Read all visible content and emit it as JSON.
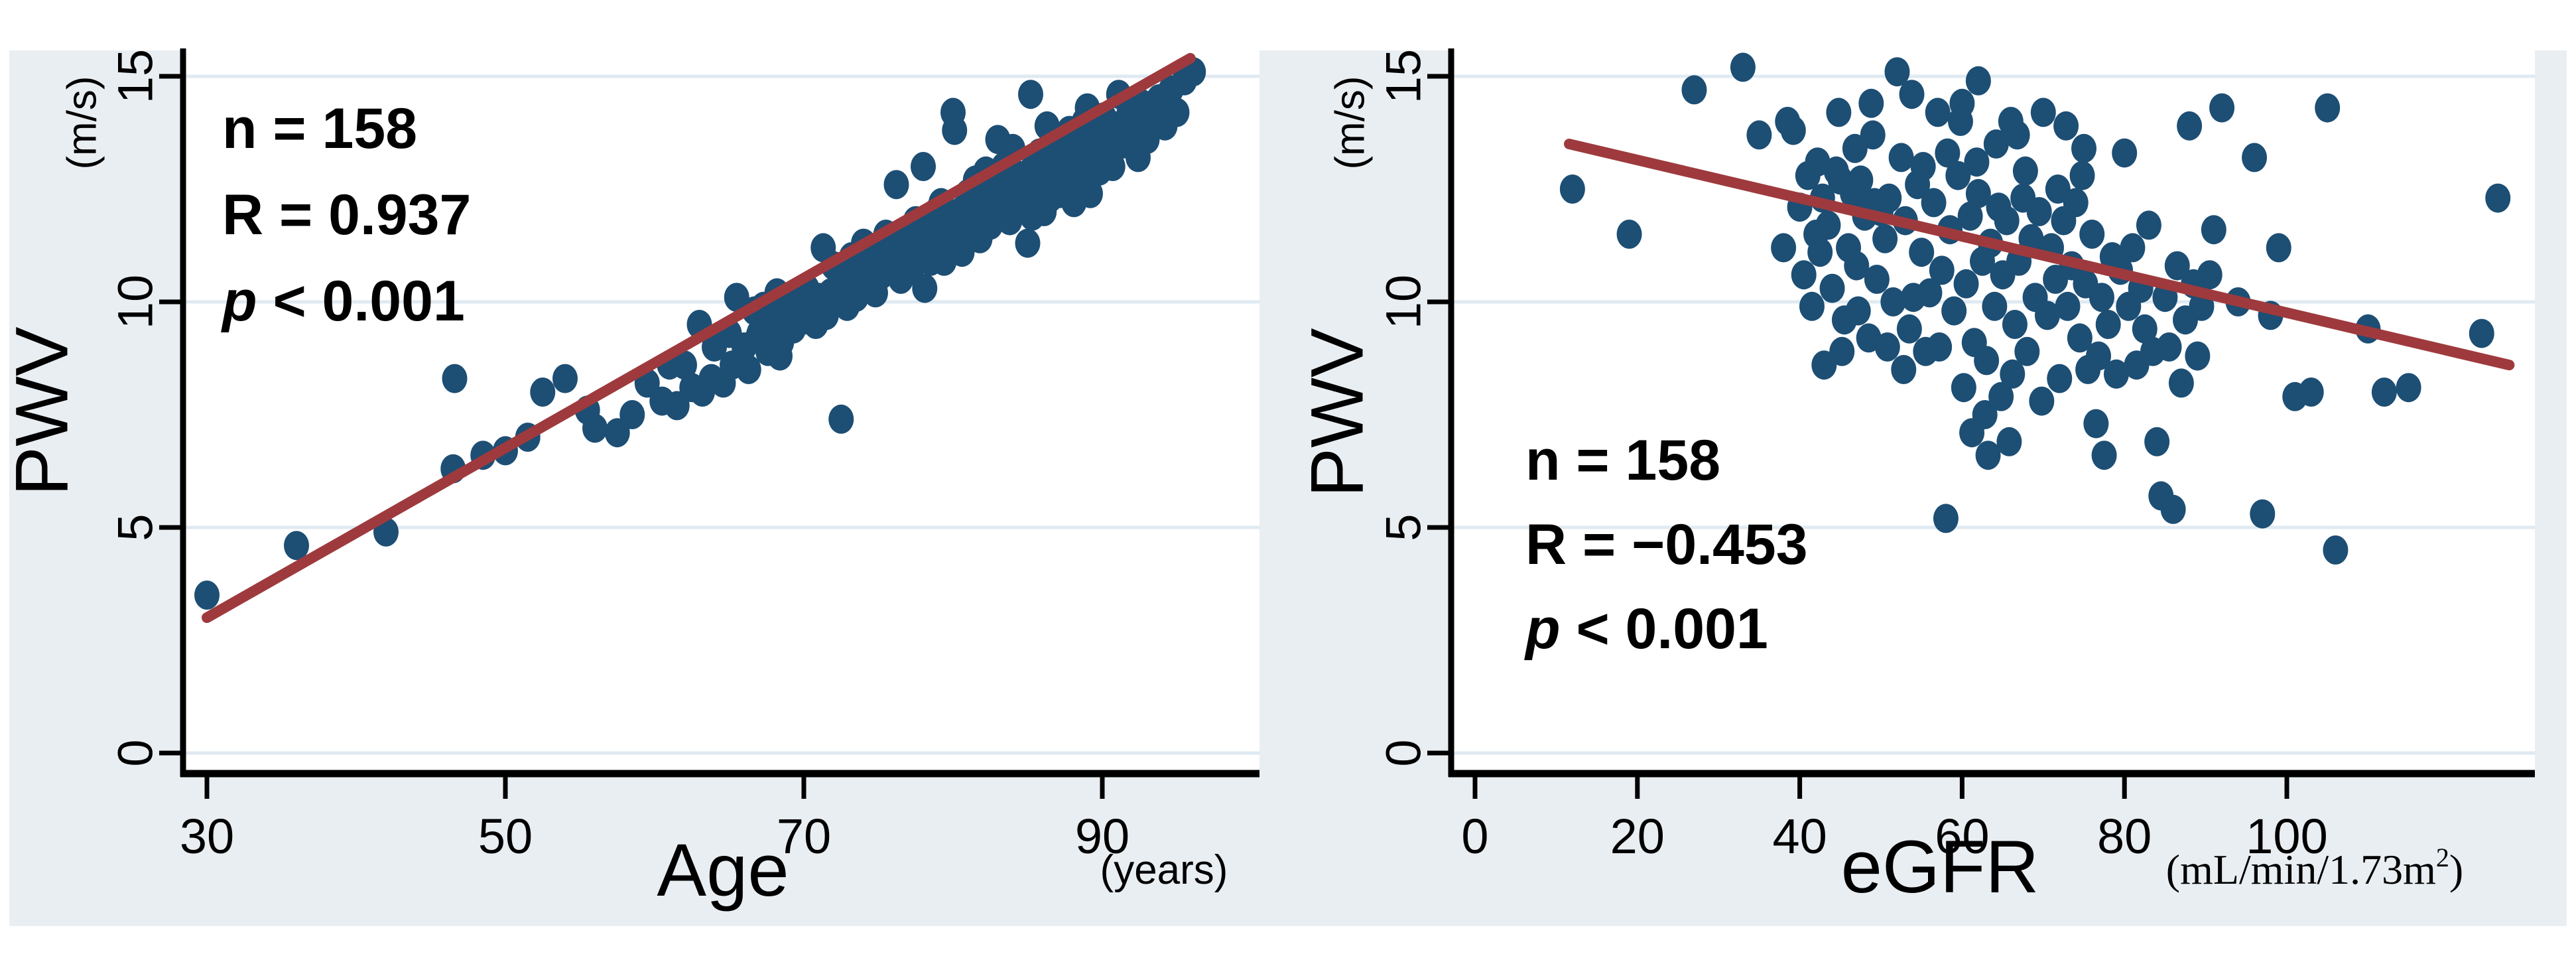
{
  "figure": {
    "background_color": "#e9eef2",
    "plot_background": "#ffffff",
    "gridline_color": "#dfeaf1",
    "dot_color": "#1d4e74",
    "line_color": "#9e3a3d",
    "axis_color": "#000000"
  },
  "chart_data": [
    {
      "type": "scatter",
      "title": "",
      "xlabel": "Age",
      "xunit": "(years)",
      "ylabel": "PWV",
      "yunit": "(m/s)",
      "xlim": [
        28.4,
        100.5
      ],
      "ylim": [
        -0.5,
        15.6
      ],
      "xticks": [
        30,
        50,
        70,
        90
      ],
      "yticks": [
        0,
        5,
        10,
        15
      ],
      "grid": "horizontal",
      "legend": "none",
      "annotations": [
        "n = 158",
        "R = 0.937",
        "p < 0.001"
      ],
      "n": 158,
      "R": 0.937,
      "p": "< 0.001",
      "regression_line": {
        "x1": 30,
        "y1": 3.0,
        "x2": 95.9,
        "y2": 15.4
      },
      "points": [
        [
          30,
          3.5
        ],
        [
          36,
          4.6
        ],
        [
          42,
          4.9
        ],
        [
          46.5,
          6.3
        ],
        [
          48.5,
          6.6
        ],
        [
          50,
          6.7
        ],
        [
          51.5,
          7
        ],
        [
          52.5,
          8
        ],
        [
          54,
          8.3
        ],
        [
          55.5,
          7.6
        ],
        [
          56,
          7.2
        ],
        [
          57.5,
          7.1
        ],
        [
          58.5,
          7.5
        ],
        [
          60.5,
          7.8
        ],
        [
          61,
          8.6
        ],
        [
          61.5,
          7.7
        ],
        [
          62,
          8.6
        ],
        [
          62.5,
          8.1
        ],
        [
          63,
          9.5
        ],
        [
          63.2,
          8
        ],
        [
          63.8,
          8.3
        ],
        [
          64,
          9
        ],
        [
          64.6,
          8.2
        ],
        [
          65,
          9.3
        ],
        [
          65.2,
          8.6
        ],
        [
          65.5,
          10.1
        ],
        [
          66,
          9
        ],
        [
          66.3,
          8.5
        ],
        [
          66.7,
          9.8
        ],
        [
          66.9,
          9.2
        ],
        [
          67,
          9.3
        ],
        [
          67.3,
          9.9
        ],
        [
          67.6,
          8.9
        ],
        [
          68,
          9.5
        ],
        [
          68.2,
          10.2
        ],
        [
          68.5,
          9.1
        ],
        [
          68.8,
          9.7
        ],
        [
          69,
          10
        ],
        [
          69.3,
          9.4
        ],
        [
          69.6,
          9.8
        ],
        [
          70,
          9.6
        ],
        [
          70.2,
          10.3
        ],
        [
          70.5,
          9.9
        ],
        [
          70.8,
          9.5
        ],
        [
          71,
          10.1
        ],
        [
          71.3,
          11.2
        ],
        [
          71.5,
          9.7
        ],
        [
          71.8,
          10.2
        ],
        [
          72,
          10.8
        ],
        [
          72.2,
          10
        ],
        [
          72.5,
          7.4
        ],
        [
          72.7,
          10.4
        ],
        [
          72.9,
          9.9
        ],
        [
          73,
          10.5
        ],
        [
          73.2,
          11
        ],
        [
          73.5,
          10.1
        ],
        [
          73.8,
          10.7
        ],
        [
          74,
          11.3
        ],
        [
          74.2,
          10.4
        ],
        [
          74.5,
          10.9
        ],
        [
          74.8,
          10.2
        ],
        [
          75,
          11.1
        ],
        [
          75.2,
          10.6
        ],
        [
          75.5,
          11.5
        ],
        [
          75.8,
          10.8
        ],
        [
          76,
          11.2
        ],
        [
          76.2,
          12.6
        ],
        [
          76.5,
          10.5
        ],
        [
          76.8,
          11
        ],
        [
          77,
          11.4
        ],
        [
          77.2,
          10.7
        ],
        [
          77.5,
          11.8
        ],
        [
          77.8,
          11.1
        ],
        [
          78,
          13
        ],
        [
          78.1,
          10.3
        ],
        [
          78.3,
          11.6
        ],
        [
          78.5,
          10.9
        ],
        [
          78.7,
          11.3
        ],
        [
          78.9,
          12
        ],
        [
          79,
          11.5
        ],
        [
          79.2,
          12.2
        ],
        [
          79.5,
          11
        ],
        [
          79.8,
          11.8
        ],
        [
          80,
          14.2
        ],
        [
          80.1,
          13.8
        ],
        [
          80.3,
          11.3
        ],
        [
          80.5,
          12
        ],
        [
          80.8,
          11.6
        ],
        [
          81,
          12.4
        ],
        [
          81.2,
          11.9
        ],
        [
          81.5,
          12.7
        ],
        [
          81.8,
          11.4
        ],
        [
          82,
          12.1
        ],
        [
          82.2,
          12.9
        ],
        [
          82.5,
          11.7
        ],
        [
          82.8,
          12.3
        ],
        [
          83,
          13.6
        ],
        [
          83.2,
          12
        ],
        [
          83.5,
          12.6
        ],
        [
          83.8,
          11.8
        ],
        [
          84,
          13.4
        ],
        [
          84.2,
          12.2
        ],
        [
          84.5,
          12.8
        ],
        [
          84.8,
          12.4
        ],
        [
          83.4,
          13
        ],
        [
          82.4,
          12.6
        ],
        [
          81.4,
          12.2
        ],
        [
          80.6,
          11.1
        ],
        [
          79.4,
          10.9
        ],
        [
          85,
          11.3
        ],
        [
          85.2,
          14.6
        ],
        [
          85.4,
          13
        ],
        [
          85.6,
          12.5
        ],
        [
          85.8,
          13.3
        ],
        [
          86,
          12.8
        ],
        [
          86.3,
          13.9
        ],
        [
          86.5,
          12.3
        ],
        [
          86.8,
          13.5
        ],
        [
          87,
          12.9
        ],
        [
          87.3,
          13.2
        ],
        [
          87.5,
          12.6
        ],
        [
          87.8,
          13.8
        ],
        [
          88,
          13.1
        ],
        [
          88.3,
          12.7
        ],
        [
          88.5,
          13.4
        ],
        [
          88.8,
          14
        ],
        [
          89,
          14.3
        ],
        [
          89.3,
          13
        ],
        [
          89.5,
          13.6
        ],
        [
          89.8,
          12.9
        ],
        [
          90,
          13.3
        ],
        [
          90.1,
          14.1
        ],
        [
          90.4,
          13.7
        ],
        [
          90.7,
          13
        ],
        [
          89.2,
          12.4
        ],
        [
          88.1,
          12.2
        ],
        [
          86.1,
          12
        ],
        [
          85.3,
          11.9
        ],
        [
          87.1,
          12.4
        ],
        [
          90.9,
          13.9
        ],
        [
          91.1,
          14.6
        ],
        [
          91.4,
          13.5
        ],
        [
          91.8,
          14.2
        ],
        [
          92.2,
          13.8
        ],
        [
          92.6,
          14.4
        ],
        [
          93,
          13.6
        ],
        [
          93.4,
          14
        ],
        [
          93.8,
          14.5
        ],
        [
          94.2,
          13.9
        ],
        [
          94.6,
          14.7
        ],
        [
          95,
          14.2
        ],
        [
          95.5,
          14.9
        ],
        [
          96.1,
          15.1
        ],
        [
          92.4,
          13.2
        ],
        [
          94,
          14.3
        ],
        [
          59.5,
          8.2
        ],
        [
          68.4,
          8.8
        ],
        [
          46.6,
          8.3
        ]
      ]
    },
    {
      "type": "scatter",
      "title": "",
      "xlabel": "eGFR",
      "xunit_pre": "(mL/min/1.73m",
      "xunit_sup": "2",
      "xunit_post": ")",
      "ylabel": "PWV",
      "yunit": "(m/s)",
      "xlim": [
        -3,
        130.5
      ],
      "ylim": [
        -0.5,
        15.6
      ],
      "xticks": [
        0,
        20,
        40,
        60,
        80,
        100
      ],
      "yticks": [
        0,
        5,
        10,
        15
      ],
      "grid": "horizontal",
      "legend": "none",
      "annotations": [
        "n = 158",
        "R = −0.453",
        "p < 0.001"
      ],
      "n": 158,
      "R": -0.453,
      "p": "< 0.001",
      "regression_line": {
        "x1": 11.6,
        "y1": 13.5,
        "x2": 127.4,
        "y2": 8.6
      },
      "points": [
        [
          12,
          12.5
        ],
        [
          19,
          11.5
        ],
        [
          27,
          14.7
        ],
        [
          33,
          15.2
        ],
        [
          35,
          13.7
        ],
        [
          38.5,
          14
        ],
        [
          39.2,
          13.8
        ],
        [
          38,
          11.2
        ],
        [
          42,
          11.5
        ],
        [
          42.5,
          11.1
        ],
        [
          43,
          8.6
        ],
        [
          45,
          12.7
        ],
        [
          47.5,
          12.7
        ],
        [
          49,
          13.7
        ],
        [
          52,
          15.1
        ],
        [
          52.5,
          13.2
        ],
        [
          51,
          12.3
        ],
        [
          54,
          10.1
        ],
        [
          56,
          10.2
        ],
        [
          58,
          5.2
        ],
        [
          86,
          5.4
        ],
        [
          97,
          5.3
        ],
        [
          106,
          4.5
        ],
        [
          84,
          6.9
        ],
        [
          84.5,
          5.7
        ],
        [
          75.5,
          8.5
        ],
        [
          76.5,
          7.3
        ],
        [
          77.5,
          6.6
        ],
        [
          57,
          14.2
        ],
        [
          60,
          14.4
        ],
        [
          62,
          14.9
        ],
        [
          66,
          14
        ],
        [
          70,
          14.2
        ],
        [
          75,
          13.4
        ],
        [
          80,
          13.3
        ],
        [
          88,
          13.9
        ],
        [
          92,
          14.3
        ],
        [
          105,
          14.3
        ],
        [
          91,
          11.6
        ],
        [
          94,
          10
        ],
        [
          99,
          11.2
        ],
        [
          96,
          13.2
        ],
        [
          98,
          9.7
        ],
        [
          101,
          7.9
        ],
        [
          103,
          8
        ],
        [
          110,
          9.4
        ],
        [
          112,
          8
        ],
        [
          115,
          8.1
        ],
        [
          124,
          9.3
        ],
        [
          126,
          12.3
        ],
        [
          40,
          12.1
        ],
        [
          40.5,
          10.6
        ],
        [
          41,
          12.8
        ],
        [
          41.5,
          9.9
        ],
        [
          42.8,
          12.3
        ],
        [
          43.5,
          11.7
        ],
        [
          44,
          10.3
        ],
        [
          44.5,
          12.9
        ],
        [
          45.5,
          9.6
        ],
        [
          46,
          11.2
        ],
        [
          46.5,
          12.4
        ],
        [
          47,
          10.8
        ],
        [
          48,
          11.9
        ],
        [
          48.5,
          9.2
        ],
        [
          49.5,
          10.5
        ],
        [
          50,
          12
        ],
        [
          50.5,
          11.4
        ],
        [
          51.5,
          10
        ],
        [
          53,
          11.8
        ],
        [
          53.5,
          9.4
        ],
        [
          54.5,
          12.6
        ],
        [
          55,
          11.1
        ],
        [
          55.5,
          8.9
        ],
        [
          56.5,
          12.2
        ],
        [
          57.5,
          10.7
        ],
        [
          58.5,
          11.6
        ],
        [
          59,
          9.8
        ],
        [
          59.5,
          12.8
        ],
        [
          60.5,
          10.4
        ],
        [
          61,
          11.9
        ],
        [
          61.5,
          9.1
        ],
        [
          62,
          12.4
        ],
        [
          62.5,
          10.9
        ],
        [
          63,
          8.7
        ],
        [
          63.5,
          11.3
        ],
        [
          64,
          9.9
        ],
        [
          64.5,
          12.1
        ],
        [
          65,
          10.6
        ],
        [
          65.5,
          11.8
        ],
        [
          66.5,
          9.5
        ],
        [
          67,
          10.9
        ],
        [
          67.5,
          12.3
        ],
        [
          68,
          8.9
        ],
        [
          68.5,
          11.4
        ],
        [
          69,
          10.1
        ],
        [
          69.5,
          12
        ],
        [
          70.5,
          9.7
        ],
        [
          71,
          11.2
        ],
        [
          71.5,
          10.5
        ],
        [
          72,
          8.3
        ],
        [
          72.5,
          11.8
        ],
        [
          73,
          9.9
        ],
        [
          73.5,
          10.8
        ],
        [
          74,
          12.2
        ],
        [
          74.5,
          9.2
        ],
        [
          75.2,
          10.4
        ],
        [
          76,
          11.5
        ],
        [
          76.8,
          8.8
        ],
        [
          77.2,
          10.1
        ],
        [
          78,
          9.5
        ],
        [
          78.5,
          11
        ],
        [
          79,
          8.4
        ],
        [
          79.5,
          10.7
        ],
        [
          80.5,
          9.9
        ],
        [
          81,
          11.2
        ],
        [
          81.5,
          8.6
        ],
        [
          82,
          10.3
        ],
        [
          82.5,
          9.4
        ],
        [
          83,
          11.7
        ],
        [
          83.5,
          8.9
        ],
        [
          85,
          10.1
        ],
        [
          85.5,
          9
        ],
        [
          86.5,
          10.8
        ],
        [
          87,
          8.2
        ],
        [
          87.5,
          9.6
        ],
        [
          88.5,
          10.4
        ],
        [
          89,
          8.8
        ],
        [
          89.5,
          9.9
        ],
        [
          90.5,
          10.6
        ],
        [
          45.2,
          8.9
        ],
        [
          47.2,
          9.8
        ],
        [
          50.8,
          9
        ],
        [
          52.8,
          8.5
        ],
        [
          57.2,
          9
        ],
        [
          60.2,
          8.1
        ],
        [
          62.8,
          7.5
        ],
        [
          64.8,
          7.9
        ],
        [
          66.2,
          8.4
        ],
        [
          69.8,
          7.8
        ],
        [
          55.2,
          13
        ],
        [
          58.2,
          13.3
        ],
        [
          61.8,
          13.1
        ],
        [
          64.2,
          13.5
        ],
        [
          67.8,
          12.9
        ],
        [
          71.8,
          12.5
        ],
        [
          74.8,
          12.8
        ],
        [
          63.2,
          6.6
        ],
        [
          65.8,
          6.9
        ],
        [
          61.2,
          7.1
        ],
        [
          59.8,
          14
        ],
        [
          66.8,
          13.7
        ],
        [
          72.8,
          13.9
        ],
        [
          44.8,
          14.2
        ],
        [
          48.8,
          14.4
        ],
        [
          53.8,
          14.6
        ],
        [
          42.2,
          13.1
        ],
        [
          46.8,
          13.4
        ],
        [
          49.2,
          12.2
        ]
      ]
    }
  ]
}
